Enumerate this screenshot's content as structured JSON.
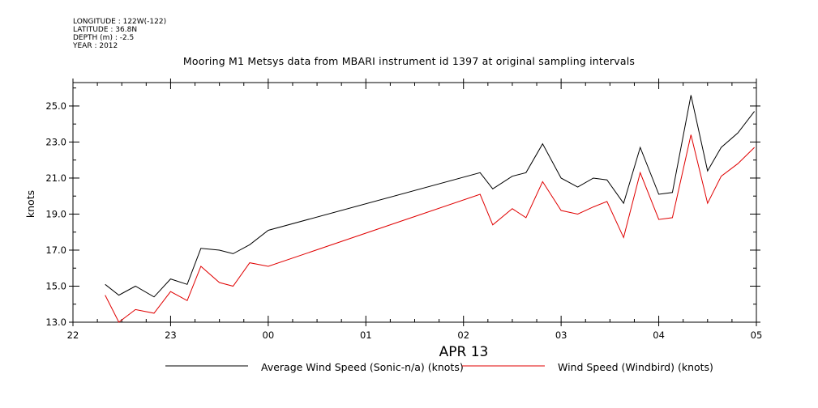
{
  "meta": {
    "longitude": "LONGITUDE : 122W(-122)",
    "latitude": "LATITUDE : 36.8N",
    "depth": "DEPTH (m) : -2.5",
    "year": "YEAR : 2012"
  },
  "chart_data": {
    "type": "line",
    "title": "Mooring M1 Metsys data from MBARI instrument id 1397 at original sampling intervals",
    "xlabel": "APR 13",
    "ylabel": "knots",
    "x_tick_labels": [
      "22",
      "23",
      "00",
      "01",
      "02",
      "03",
      "04",
      "05"
    ],
    "y_tick_labels": [
      "13.0",
      "15.0",
      "17.0",
      "19.0",
      "21.0",
      "23.0",
      "25.0"
    ],
    "ylim": [
      13.0,
      26.3
    ],
    "xlim": [
      22,
      29
    ],
    "series": [
      {
        "name": "Average Wind Speed (Sonic-n/a) (knots)",
        "color": "#000000",
        "x": [
          22.33,
          22.47,
          22.64,
          22.83,
          23.0,
          23.17,
          23.31,
          23.5,
          23.64,
          23.81,
          24.0,
          26.17,
          26.3,
          26.5,
          26.64,
          26.81,
          27.0,
          27.17,
          27.33,
          27.47,
          27.64,
          27.81,
          28.0,
          28.14,
          28.33,
          28.5,
          28.64,
          28.81,
          28.98
        ],
        "values": [
          15.1,
          14.5,
          15.0,
          14.4,
          15.4,
          15.1,
          17.1,
          17.0,
          16.8,
          17.3,
          18.1,
          21.3,
          20.4,
          21.1,
          21.3,
          22.9,
          21.0,
          20.5,
          21.0,
          20.9,
          19.6,
          22.7,
          20.1,
          20.2,
          25.6,
          21.4,
          22.7,
          23.5,
          24.7
        ]
      },
      {
        "name": "Wind Speed (Windbird) (knots)",
        "color": "#e00000",
        "x": [
          22.33,
          22.47,
          22.64,
          22.83,
          23.0,
          23.17,
          23.31,
          23.5,
          23.64,
          23.81,
          24.0,
          26.17,
          26.3,
          26.5,
          26.64,
          26.81,
          27.0,
          27.17,
          27.33,
          27.47,
          27.64,
          27.81,
          28.0,
          28.14,
          28.33,
          28.5,
          28.64,
          28.81,
          28.98
        ],
        "values": [
          14.5,
          13.0,
          13.7,
          13.5,
          14.7,
          14.2,
          16.1,
          15.2,
          15.0,
          16.3,
          16.1,
          20.1,
          18.4,
          19.3,
          18.8,
          20.8,
          19.2,
          19.0,
          19.4,
          19.7,
          17.7,
          21.3,
          18.7,
          18.8,
          23.4,
          19.6,
          21.1,
          21.8,
          22.7
        ]
      }
    ],
    "grid": false,
    "legend": "bottom"
  }
}
